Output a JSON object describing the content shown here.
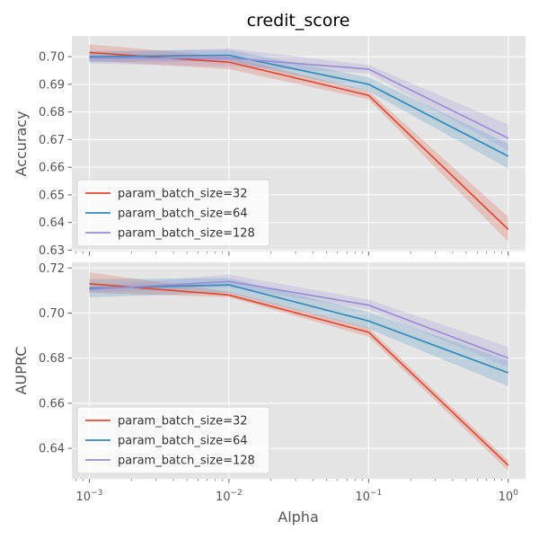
{
  "title": "credit_score",
  "xlabel": "Alpha",
  "colors": {
    "panel_bg": "#E5E5E5",
    "grid": "#FFFFFF",
    "tick_text": "#555555"
  },
  "xticks": [
    {
      "value": 0.001,
      "base": "10",
      "exp": "−3"
    },
    {
      "value": 0.01,
      "base": "10",
      "exp": "−2"
    },
    {
      "value": 0.1,
      "base": "10",
      "exp": "−1"
    },
    {
      "value": 1,
      "base": "10",
      "exp": "0"
    }
  ],
  "chart_data": [
    {
      "type": "line",
      "ylabel": "Accuracy",
      "xscale": "log",
      "xlim": [
        0.00075,
        1.33
      ],
      "ylim": [
        0.6295,
        0.7075
      ],
      "yticks": [
        0.63,
        0.64,
        0.65,
        0.66,
        0.67,
        0.68,
        0.69,
        0.7
      ],
      "ytick_labels": [
        "0.63",
        "0.64",
        "0.65",
        "0.66",
        "0.67",
        "0.68",
        "0.69",
        "0.70"
      ],
      "grid": true,
      "legend_position": "lower-left",
      "x": [
        0.001,
        0.01,
        0.1,
        1
      ],
      "series": [
        {
          "name": "param_batch_size=32",
          "color": "#E24A33",
          "values": [
            0.7015,
            0.698,
            0.686,
            0.6375
          ],
          "lower": [
            0.6985,
            0.6955,
            0.6845,
            0.633
          ],
          "upper": [
            0.7045,
            0.7,
            0.6875,
            0.642
          ]
        },
        {
          "name": "param_batch_size=64",
          "color": "#348ABD",
          "values": [
            0.7,
            0.7005,
            0.69,
            0.664
          ],
          "lower": [
            0.698,
            0.6985,
            0.6875,
            0.6595
          ],
          "upper": [
            0.702,
            0.7025,
            0.6925,
            0.6685
          ]
        },
        {
          "name": "param_batch_size=128",
          "color": "#988ED5",
          "values": [
            0.6995,
            0.6995,
            0.6955,
            0.6705
          ],
          "lower": [
            0.6975,
            0.6965,
            0.694,
            0.666
          ],
          "upper": [
            0.7015,
            0.703,
            0.697,
            0.6755
          ]
        }
      ]
    },
    {
      "type": "line",
      "ylabel": "AUPRC",
      "xscale": "log",
      "xlim": [
        0.00075,
        1.33
      ],
      "ylim": [
        0.6265,
        0.7225
      ],
      "yticks": [
        0.64,
        0.66,
        0.68,
        0.7,
        0.72
      ],
      "ytick_labels": [
        "0.64",
        "0.66",
        "0.68",
        "0.70",
        "0.72"
      ],
      "grid": true,
      "legend_position": "lower-left",
      "x": [
        0.001,
        0.01,
        0.1,
        1
      ],
      "series": [
        {
          "name": "param_batch_size=32",
          "color": "#E24A33",
          "values": [
            0.713,
            0.708,
            0.6915,
            0.6325
          ],
          "lower": [
            0.709,
            0.707,
            0.6895,
            0.63
          ],
          "upper": [
            0.718,
            0.7095,
            0.6935,
            0.6345
          ]
        },
        {
          "name": "param_batch_size=64",
          "color": "#348ABD",
          "values": [
            0.711,
            0.7125,
            0.6965,
            0.6735
          ],
          "lower": [
            0.707,
            0.709,
            0.693,
            0.6675
          ],
          "upper": [
            0.715,
            0.7155,
            0.7005,
            0.679
          ]
        },
        {
          "name": "param_batch_size=128",
          "color": "#988ED5",
          "values": [
            0.7105,
            0.714,
            0.7035,
            0.68
          ],
          "lower": [
            0.709,
            0.7115,
            0.7015,
            0.676
          ],
          "upper": [
            0.712,
            0.717,
            0.706,
            0.685
          ]
        }
      ]
    }
  ]
}
